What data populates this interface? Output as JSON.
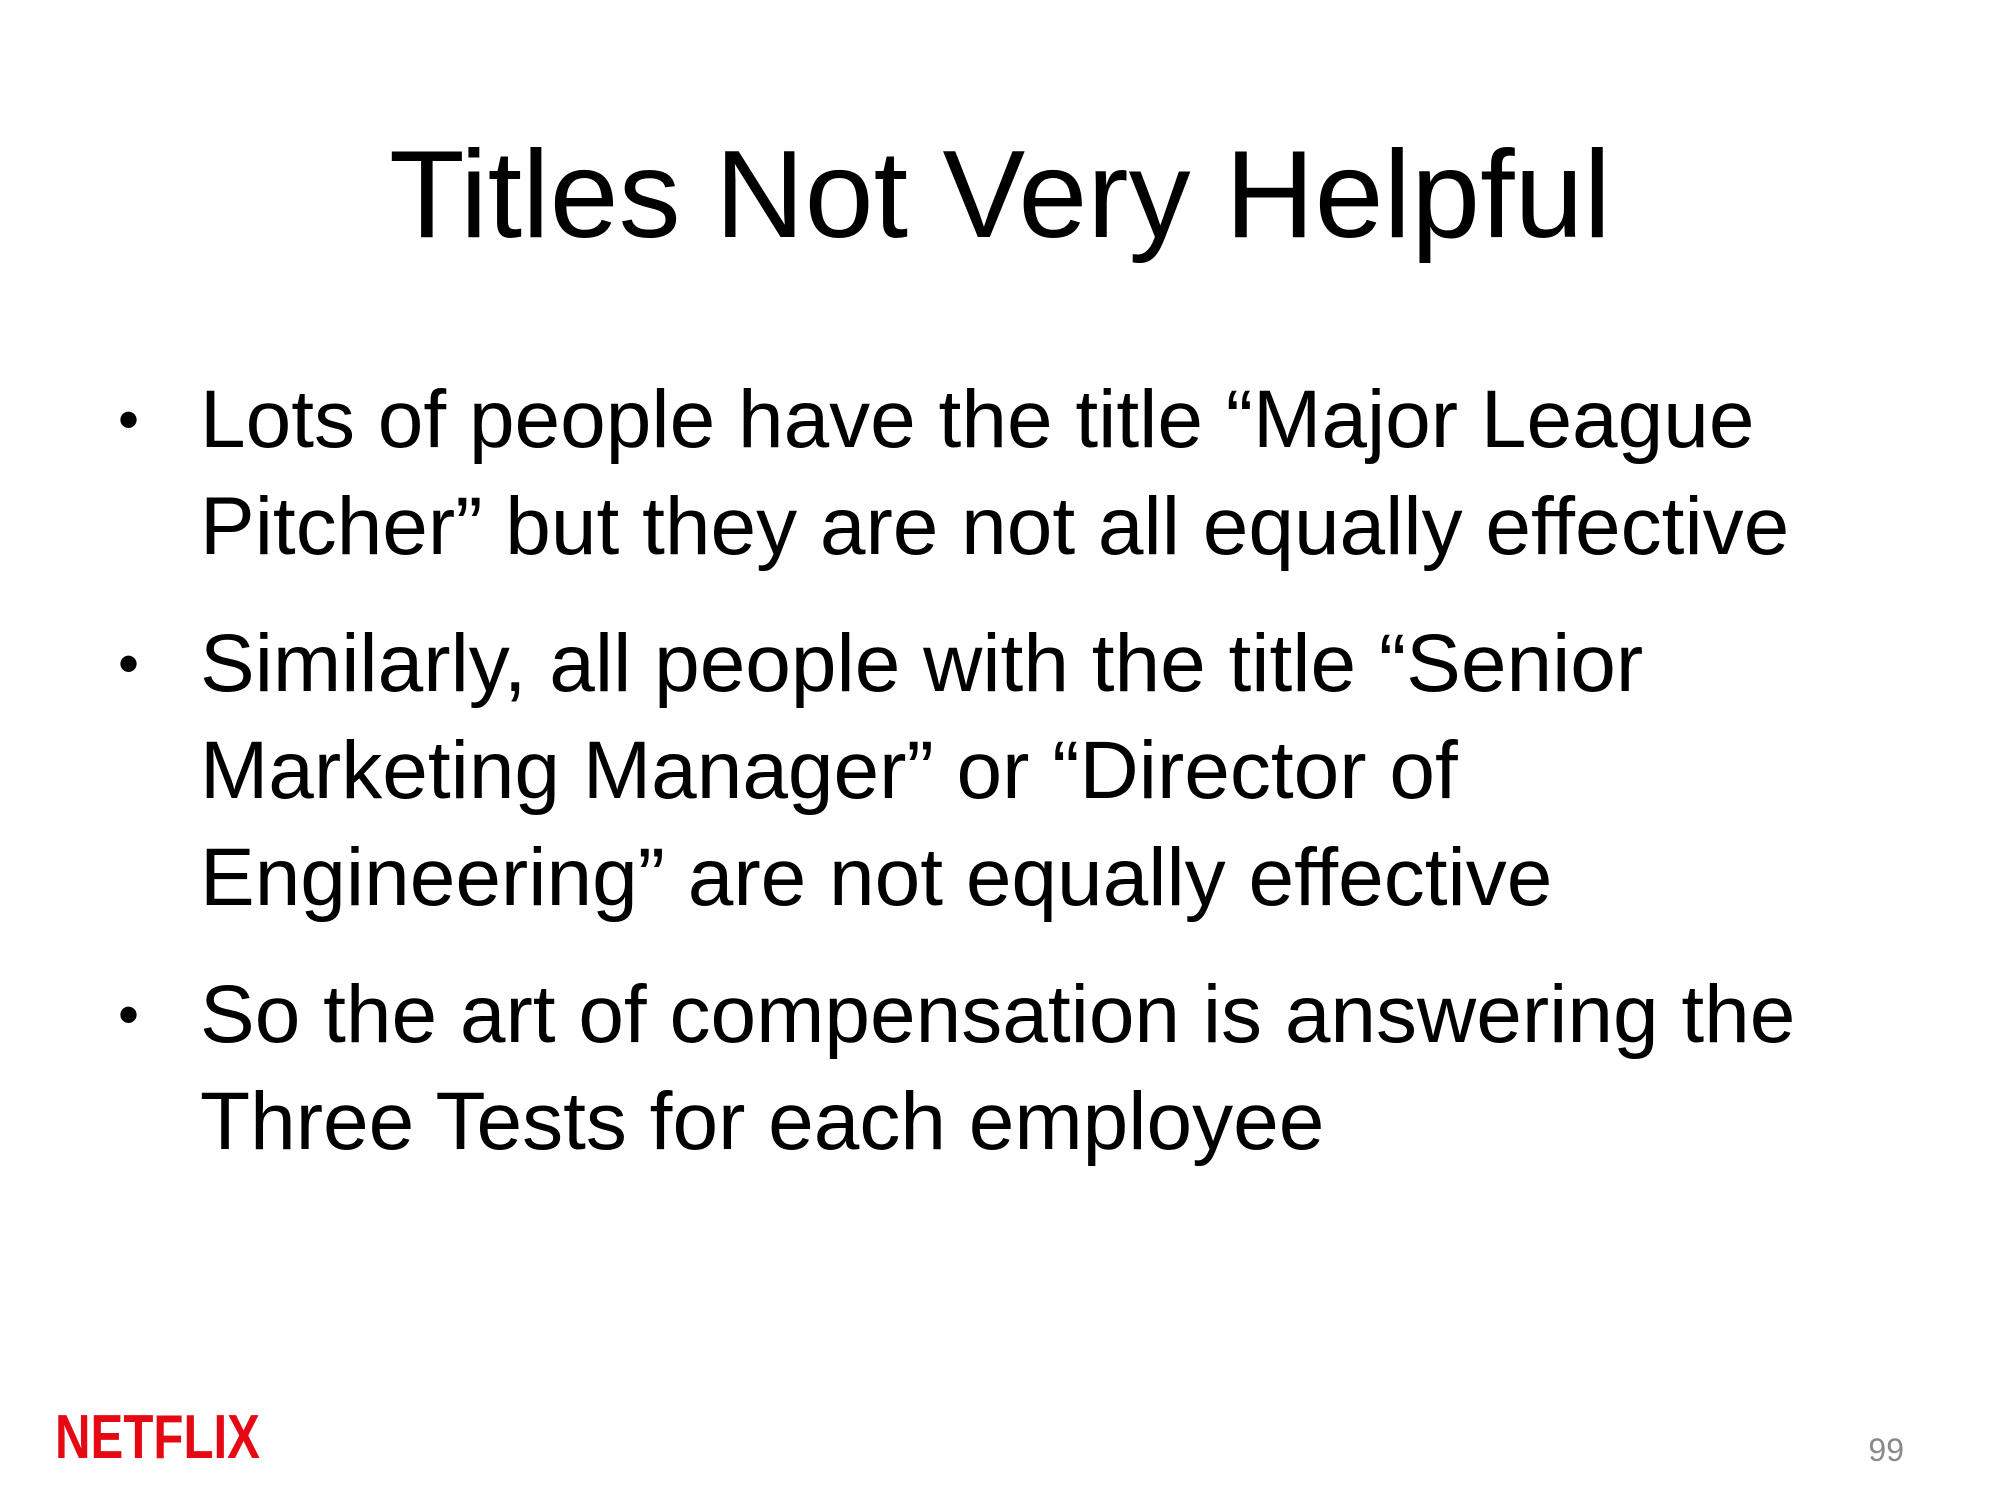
{
  "slide": {
    "title": "Titles Not Very Helpful",
    "bullets": [
      {
        "text": "Lots of people have the title “Major League Pitcher” but they are not all equally effective"
      },
      {
        "text": "Similarly, all people with the title “Senior Marketing Manager” or “Director of Engineering” are not equally effective"
      },
      {
        "text": "So the art of compensation is answering the Three Tests for each employee"
      }
    ],
    "bullet_symbol": "•",
    "logo_text": "NETFLIX",
    "page_number": "99"
  },
  "colors": {
    "background": "#ffffff",
    "text": "#000000",
    "brand_red": "#e50914",
    "page_number": "#8a8a8a"
  },
  "icons": {
    "logo": "netflix-logo"
  }
}
